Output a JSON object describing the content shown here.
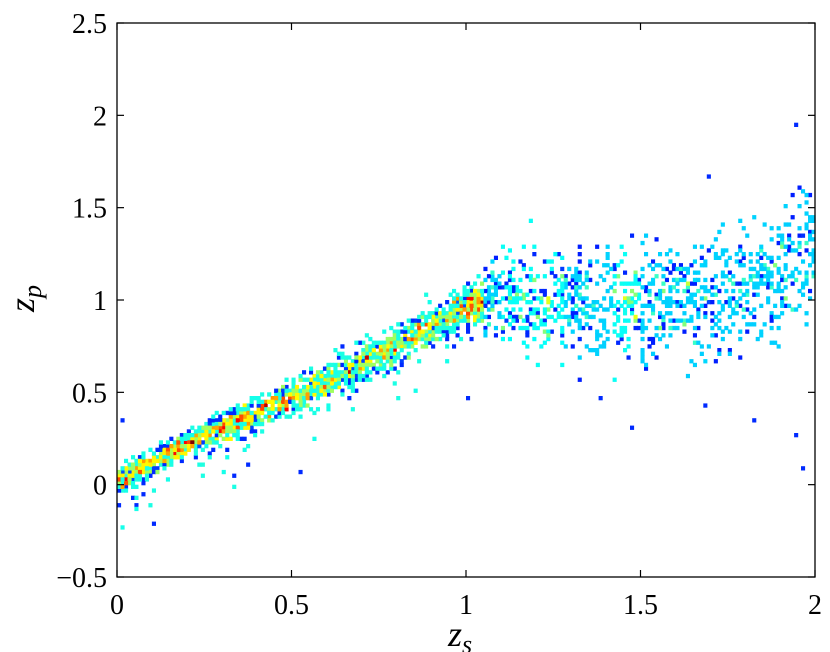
{
  "chart_data": {
    "type": "heatmap",
    "title": "",
    "xlabel": "z",
    "xlabel_sub": "s",
    "ylabel": "z",
    "ylabel_sub": "p",
    "xlim": [
      0,
      2
    ],
    "ylim": [
      -0.5,
      2.5
    ],
    "xticks": [
      0,
      0.5,
      1,
      1.5,
      2
    ],
    "xtick_labels": [
      "0",
      "0.5",
      "1",
      "1.5",
      "2"
    ],
    "yticks": [
      -0.5,
      0,
      0.5,
      1,
      1.5,
      2,
      2.5
    ],
    "ytick_labels": [
      "−0.5",
      "0",
      "0.5",
      "1",
      "1.5",
      "2",
      "2.5"
    ],
    "grid": false,
    "colormap": "jet",
    "description_of_density": "dense ridge along z_p ≈ z_s for z_s < 1.05, flattening to z_p ≈ 1 with wide scatter for 1.05 < z_s < 2",
    "ridge": [
      {
        "x": 0.0,
        "y": 0.02
      },
      {
        "x": 0.1,
        "y": 0.12
      },
      {
        "x": 0.2,
        "y": 0.22
      },
      {
        "x": 0.3,
        "y": 0.31
      },
      {
        "x": 0.4,
        "y": 0.39
      },
      {
        "x": 0.5,
        "y": 0.47
      },
      {
        "x": 0.6,
        "y": 0.56
      },
      {
        "x": 0.7,
        "y": 0.66
      },
      {
        "x": 0.8,
        "y": 0.76
      },
      {
        "x": 0.9,
        "y": 0.86
      },
      {
        "x": 1.0,
        "y": 0.96
      },
      {
        "x": 1.1,
        "y": 1.02
      },
      {
        "x": 1.2,
        "y": 1.0
      },
      {
        "x": 1.3,
        "y": 0.98
      },
      {
        "x": 1.4,
        "y": 0.97
      },
      {
        "x": 1.5,
        "y": 0.98
      },
      {
        "x": 1.6,
        "y": 1.0
      },
      {
        "x": 1.7,
        "y": 1.02
      },
      {
        "x": 1.8,
        "y": 1.07
      },
      {
        "x": 1.9,
        "y": 1.15
      },
      {
        "x": 2.0,
        "y": 1.25
      }
    ],
    "outliers": [
      {
        "x": 1.99,
        "y": 2.1
      },
      {
        "x": 1.94,
        "y": 1.95
      },
      {
        "x": 1.69,
        "y": 1.68
      },
      {
        "x": 1.45,
        "y": 1.48
      },
      {
        "x": 1.38,
        "y": 0.47
      },
      {
        "x": 1.47,
        "y": 0.3
      },
      {
        "x": 1.53,
        "y": 0.3
      },
      {
        "x": 1.69,
        "y": 0.05
      },
      {
        "x": 1.94,
        "y": 0.26
      },
      {
        "x": 1.96,
        "y": 0.09
      },
      {
        "x": 1.82,
        "y": 0.35
      },
      {
        "x": 1.68,
        "y": 0.43
      },
      {
        "x": 0.1,
        "y": 0.35
      },
      {
        "x": 0.01,
        "y": 0.35
      },
      {
        "x": 0.52,
        "y": 0.08
      },
      {
        "x": 0.37,
        "y": 0.11
      },
      {
        "x": 0.32,
        "y": 0.1
      },
      {
        "x": 1.0,
        "y": 0.46
      }
    ]
  }
}
